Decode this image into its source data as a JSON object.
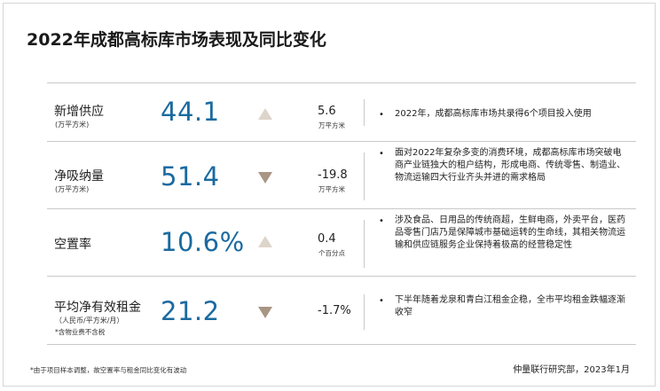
{
  "title": "2022年成都高标库市场表现及同比变化",
  "rows": [
    {
      "label": "新增供应",
      "unit": "(万平方米)",
      "note": "",
      "value": "44.1",
      "direction": "up",
      "change": "5.6",
      "change_unit": "万平方米",
      "description": "2022年，成都高标库市场共录得6个项目投入使用"
    },
    {
      "label": "净吸纳量",
      "unit": "(万平方米)",
      "note": "",
      "value": "51.4",
      "direction": "down",
      "change": "-19.8",
      "change_unit": "万平方米",
      "description": "面对2022年复杂多变的消费环境，成都高标库市场突破电商产业链独大的租户结构，形成电商、传统零售、制造业、物流运输四大行业齐头并进的需求格局"
    },
    {
      "label": "空置率",
      "unit": "",
      "note": "",
      "value": "10.6%",
      "direction": "up",
      "change": "0.4",
      "change_unit": "个百分点",
      "description": "涉及食品、日用品的传统商超，生鲜电商，外卖平台，医药品零售门店乃是保障城市基础运转的生命线，其相关物流运输和供应链服务企业保持着极高的经营稳定性"
    },
    {
      "label": "平均净有效租金",
      "unit": "（人民币/平方米/月）",
      "note": "*含物业费不含税",
      "value": "21.2",
      "direction": "down",
      "change": "-1.7%",
      "change_unit": "",
      "description": "下半年随着龙泉和青白江租金企稳，全市平均租金跌幅逐渐收窄"
    }
  ],
  "colors": {
    "value_blue": "#1a6aa0",
    "arrow_up": "#ddd4cb",
    "arrow_down": "#a99583",
    "rule": "#c9c9c9"
  },
  "footnote": "*由于项目样本调整，故空置率与租金同比变化有波动",
  "source": "仲量联行研究部，2023年1月"
}
